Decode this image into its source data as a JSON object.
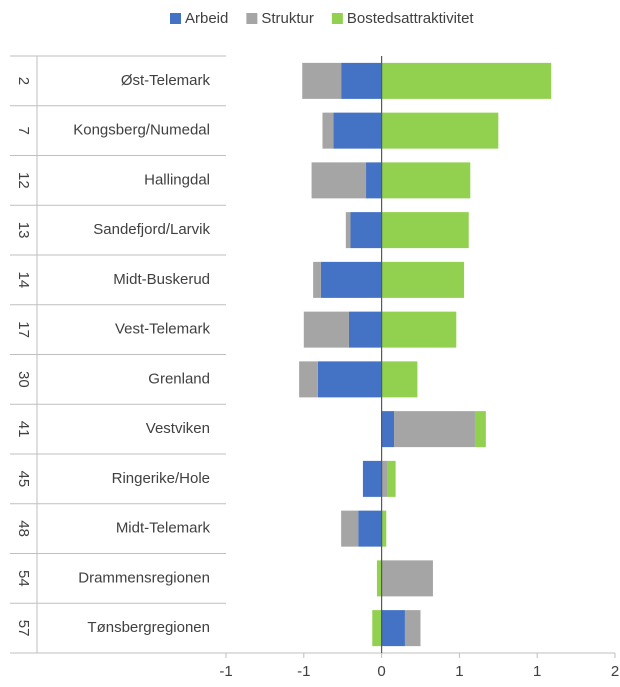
{
  "chart_data": {
    "type": "bar",
    "orientation": "horizontal",
    "stacked": true,
    "ranks": [
      "2",
      "7",
      "12",
      "13",
      "14",
      "17",
      "30",
      "41",
      "45",
      "48",
      "54",
      "57"
    ],
    "categories": [
      "Øst-Telemark",
      "Kongsberg/Numedal",
      "Hallingdal",
      "Sandefjord/Larvik",
      "Midt-Buskerud",
      "Vest-Telemark",
      "Grenland",
      "Vestviken",
      "Ringerike/Hole",
      "Midt-Telemark",
      "Drammensregionen",
      "Tønsbergregionen"
    ],
    "series": [
      {
        "name": "Arbeid",
        "color": "#4472c4",
        "values": [
          -0.26,
          -0.31,
          -0.1,
          -0.2,
          -0.39,
          -0.21,
          -0.41,
          0.08,
          -0.12,
          -0.15,
          0,
          0.15
        ]
      },
      {
        "name": "Struktur",
        "color": "#a5a5a5",
        "values": [
          -0.25,
          -0.07,
          -0.35,
          -0.03,
          -0.05,
          -0.29,
          -0.12,
          0.52,
          0.04,
          -0.11,
          0.33,
          0.1
        ]
      },
      {
        "name": "Bostedsattraktivitet",
        "color": "#92d050",
        "values": [
          1.09,
          0.75,
          0.57,
          0.56,
          0.53,
          0.48,
          0.23,
          0.07,
          0.05,
          0.03,
          -0.03,
          -0.06
        ]
      }
    ],
    "xlim": [
      -1,
      1.5
    ],
    "xticks": [
      {
        "value": -1,
        "label": "-1"
      },
      {
        "value": -0.5,
        "label": "-1"
      },
      0,
      {
        "value": 0.5,
        "label": "1"
      },
      1,
      {
        "value": 1.5,
        "label": "2"
      }
    ],
    "legend": "top"
  }
}
